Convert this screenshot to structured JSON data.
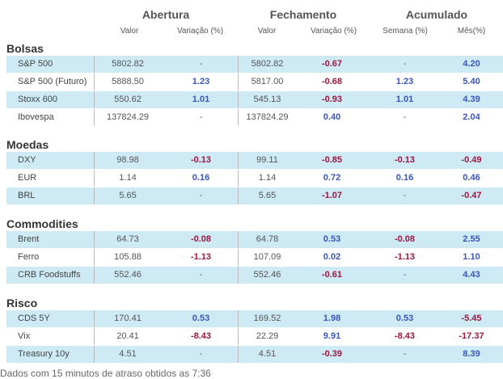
{
  "header": {
    "groups": [
      {
        "label": "Abertura"
      },
      {
        "label": "Fechamento"
      },
      {
        "label": "Acumulado"
      }
    ],
    "columns": [
      "Valor",
      "Variação (%)",
      "Valor",
      "Variação (%)",
      "Semana (%)",
      "Mês(%)"
    ]
  },
  "sections": [
    {
      "title": "Bolsas",
      "rows": [
        {
          "name": "S&P 500",
          "open_value": "5802.82",
          "open_var": "-",
          "close_value": "5802.82",
          "close_var": "-0.67",
          "week": "-",
          "month": "4.20"
        },
        {
          "name": "S&P 500 (Futuro)",
          "open_value": "5888.50",
          "open_var": "1.23",
          "close_value": "5817.00",
          "close_var": "-0.68",
          "week": "1.23",
          "month": "5.40"
        },
        {
          "name": "Stoxx 600",
          "open_value": "550.62",
          "open_var": "1.01",
          "close_value": "545.13",
          "close_var": "-0.93",
          "week": "1.01",
          "month": "4.39"
        },
        {
          "name": "Ibovespa",
          "open_value": "137824.29",
          "open_var": "-",
          "close_value": "137824.29",
          "close_var": "0.40",
          "week": "-",
          "month": "2.04"
        }
      ]
    },
    {
      "title": "Moedas",
      "rows": [
        {
          "name": "DXY",
          "open_value": "98.98",
          "open_var": "-0.13",
          "close_value": "99.11",
          "close_var": "-0.85",
          "week": "-0.13",
          "month": "-0.49"
        },
        {
          "name": "EUR",
          "open_value": "1.14",
          "open_var": "0.16",
          "close_value": "1.14",
          "close_var": "0.72",
          "week": "0.16",
          "month": "0.46"
        },
        {
          "name": "BRL",
          "open_value": "5.65",
          "open_var": "-",
          "close_value": "5.65",
          "close_var": "-1.07",
          "week": "-",
          "month": "-0.47"
        }
      ]
    },
    {
      "title": "Commodities",
      "rows": [
        {
          "name": "Brent",
          "open_value": "64.73",
          "open_var": "-0.08",
          "close_value": "64.78",
          "close_var": "0.53",
          "week": "-0.08",
          "month": "2.55"
        },
        {
          "name": "Ferro",
          "open_value": "105.88",
          "open_var": "-1.13",
          "close_value": "107.09",
          "close_var": "0.02",
          "week": "-1.13",
          "month": "1.10"
        },
        {
          "name": "CRB Foodstuffs",
          "open_value": "552.46",
          "open_var": "-",
          "close_value": "552.46",
          "close_var": "-0.61",
          "week": "-",
          "month": "4.43"
        }
      ]
    },
    {
      "title": "Risco",
      "rows": [
        {
          "name": "CDS 5Y",
          "open_value": "170.41",
          "open_var": "0.53",
          "close_value": "169.52",
          "close_var": "1.98",
          "week": "0.53",
          "month": "-5.45"
        },
        {
          "name": "Vix",
          "open_value": "20.41",
          "open_var": "-8.43",
          "close_value": "22.29",
          "close_var": "9.91",
          "week": "-8.43",
          "month": "-17.37"
        },
        {
          "name": "Treasury 10y",
          "open_value": "4.51",
          "open_var": "-",
          "close_value": "4.51",
          "close_var": "-0.39",
          "week": "-",
          "month": "8.39"
        }
      ]
    }
  ],
  "footer": {
    "note": "Dados com 15 minutos de atraso obtidos as 7:36"
  },
  "colors": {
    "row_highlight": "#cdeaf5",
    "positive": "#3a56b8",
    "negative": "#a0163e"
  }
}
